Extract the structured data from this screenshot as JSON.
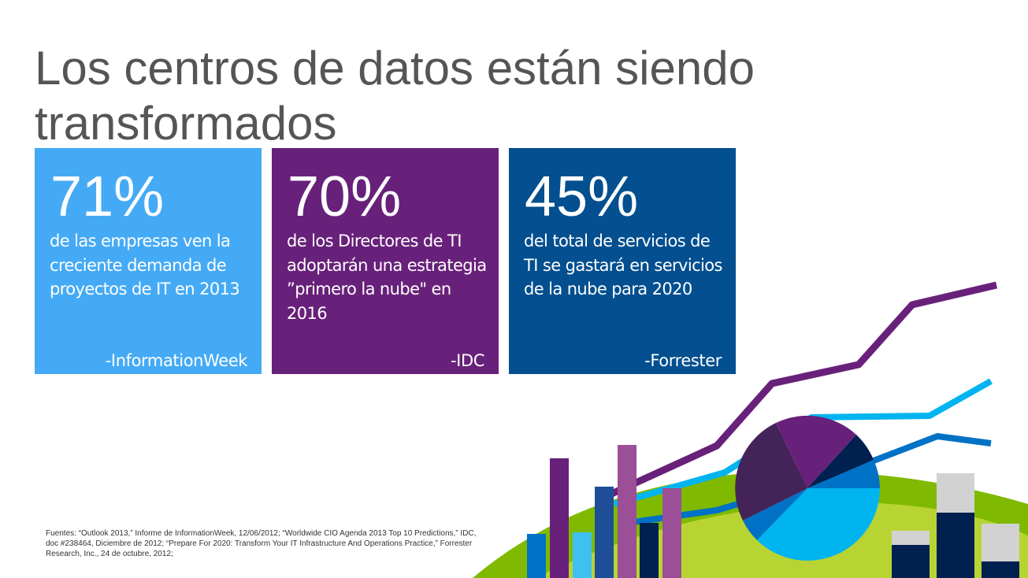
{
  "slide": {
    "title": "Los centros de datos están siendo transformados",
    "sources": "Fuentes: “Outlook 2013,” Informe de InformationWeek, 12/06/2012; “Worldwide CIO Agenda 2013 Top 10 Predictions,” IDC, doc #238464, Diciembre de 2012; “Prepare For 2020: Transform Your IT Infrastructure And Operations Practice,” Forrester Research, Inc., 24 de octubre, 2012;"
  },
  "tiles": [
    {
      "percent": "71%",
      "text": "de las empresas ven la creciente demanda de proyectos de IT en 2013",
      "source": "-InformationWeek",
      "color": "#45aaf5"
    },
    {
      "percent": "70%",
      "text": "de los Directores de TI adoptarán una estrategia ”primero la nube\" en 2016",
      "source": "-IDC",
      "color": "#68217a"
    },
    {
      "percent": "45%",
      "text": "del total de servicios de TI se gastará en servicios de la nube para 2020",
      "source": "-Forrester",
      "color": "#034f8f"
    }
  ],
  "palette": {
    "purple": "#68217a",
    "cyan": "#00b4f0",
    "blue": "#0072c6",
    "navy": "#002050",
    "green": "#7fba00",
    "gray": "#d2d2d2"
  }
}
